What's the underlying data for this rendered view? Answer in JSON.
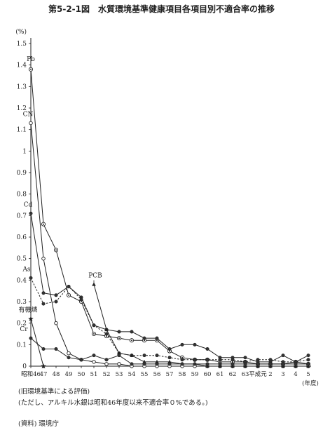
{
  "title": "第5-2-1図　水質環境基準健康項目各項目別不適合率の推移",
  "notes": {
    "line1": "(旧環境基準による評価)",
    "line2": "(ただし、アルキル水銀は昭和46年度以来不適合率０%である。)",
    "source": "(資料)  環境庁"
  },
  "chart_data": {
    "type": "line",
    "title": "第5-2-1図　水質環境基準健康項目各項目別不適合率の推移",
    "ylabel": "(%)",
    "xlabel": "(年度)",
    "ylim": [
      0,
      1.5
    ],
    "y_ticks": [
      0,
      0.1,
      0.2,
      0.3,
      0.4,
      0.5,
      0.6,
      0.7,
      0.8,
      0.9,
      1,
      1.1,
      1.2,
      1.3,
      1.4,
      1.5
    ],
    "y_tick_labels": [
      "0",
      "0.1",
      "0.2",
      "0.3",
      "0.4",
      "0.5",
      "0.6",
      "0.7",
      "0.8",
      "0.9",
      "1",
      "1.1",
      "1.2",
      "1.3",
      "1.4",
      "1.5"
    ],
    "categories": [
      "昭和46",
      "47",
      "48",
      "49",
      "50",
      "51",
      "52",
      "53",
      "54",
      "55",
      "56",
      "57",
      "58",
      "59",
      "60",
      "61",
      "62",
      "63",
      "平成元",
      "2",
      "3",
      "4",
      "5"
    ],
    "series": [
      {
        "name": "Pb",
        "color": "#222222",
        "marker": "double-circle",
        "values": [
          1.38,
          0.66,
          0.54,
          0.33,
          0.3,
          0.15,
          0.14,
          0.13,
          0.12,
          0.12,
          0.12,
          0.07,
          0.04,
          0.03,
          0.03,
          0.02,
          0.02,
          0.02,
          0.01,
          0.01,
          0.01,
          0.02,
          0.01
        ]
      },
      {
        "name": "CN",
        "color": "#222222",
        "marker": "open-circle",
        "values": [
          1.13,
          0.5,
          0.2,
          0.06,
          0.03,
          0.02,
          0.01,
          0.01,
          0.0,
          0.0,
          0.0,
          0.0,
          0.0,
          0.0,
          0.0,
          0.0,
          0.0,
          0.0,
          0.0,
          0.0,
          0.0,
          0.0,
          0.0
        ]
      },
      {
        "name": "Cd",
        "color": "#222222",
        "marker": "dot-circle",
        "values": [
          0.71,
          0.34,
          0.33,
          0.37,
          0.32,
          0.19,
          0.17,
          0.16,
          0.16,
          0.13,
          0.13,
          0.08,
          0.1,
          0.1,
          0.08,
          0.04,
          0.04,
          0.04,
          0.02,
          0.02,
          0.05,
          0.02,
          0.05
        ]
      },
      {
        "name": "As",
        "color": "#222222",
        "marker": "dot-circle",
        "dashed": true,
        "values": [
          0.41,
          0.29,
          0.3,
          0.37,
          0.31,
          0.19,
          0.15,
          0.06,
          0.05,
          0.05,
          0.05,
          0.04,
          0.03,
          0.03,
          0.03,
          0.03,
          0.03,
          0.02,
          0.03,
          0.03,
          0.02,
          0.02,
          0.03
        ]
      },
      {
        "name": "PCB",
        "color": "#222222",
        "marker": "triangle",
        "start_index": 5,
        "values": [
          null,
          null,
          null,
          null,
          null,
          0.38,
          0.17,
          0.06,
          0.05,
          0.02,
          0.02,
          0.02,
          0.01,
          0.01,
          0.0,
          0.0,
          0.0,
          0.0,
          0.0,
          0.0,
          0.0,
          0.0,
          0.0
        ]
      },
      {
        "name": "有機燐",
        "color": "#222222",
        "marker": "star",
        "values": [
          0.22,
          0.0,
          null,
          null,
          null,
          null,
          null,
          null,
          null,
          null,
          null,
          null,
          null,
          null,
          null,
          null,
          null,
          null,
          null,
          null,
          null,
          null,
          null
        ]
      },
      {
        "name": "Cr",
        "color": "#222222",
        "marker": "dot-circle",
        "values": [
          0.13,
          0.08,
          0.08,
          0.04,
          0.03,
          0.05,
          0.03,
          0.05,
          0.01,
          0.01,
          0.01,
          0.01,
          0.01,
          0.01,
          0.01,
          0.01,
          0.01,
          0.01,
          0.01,
          0.01,
          0.01,
          0.01,
          0.01
        ]
      }
    ]
  }
}
